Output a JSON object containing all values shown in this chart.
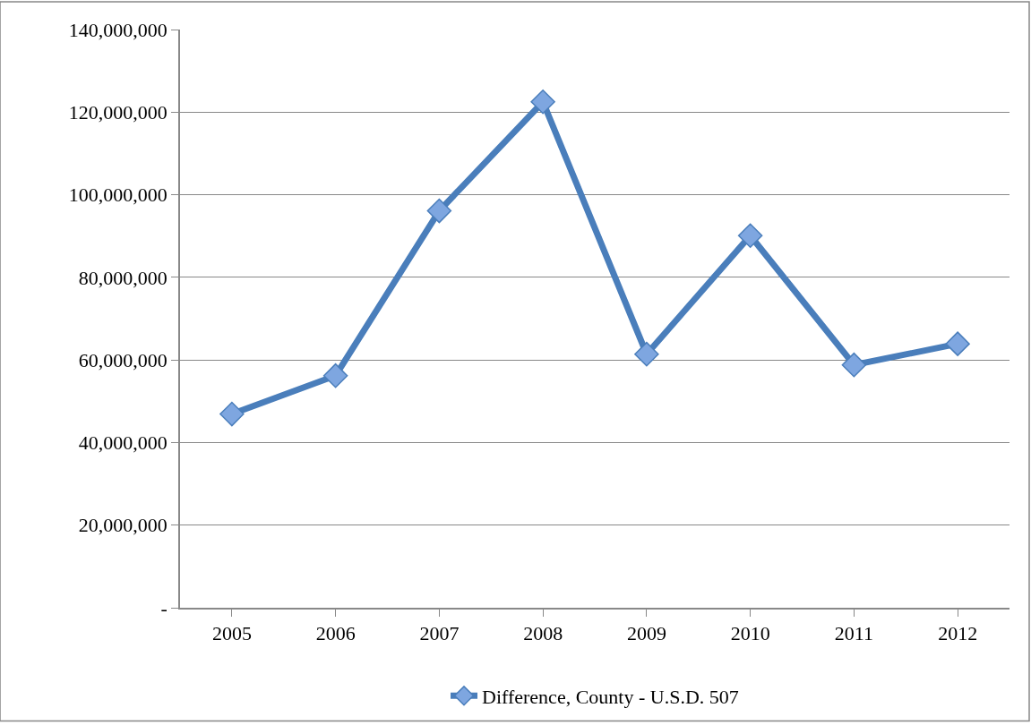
{
  "chart_data": {
    "type": "line",
    "categories": [
      "2005",
      "2006",
      "2007",
      "2008",
      "2009",
      "2010",
      "2011",
      "2012"
    ],
    "series": [
      {
        "name": "Difference, County - U.S.D. 507",
        "color": "#4a7ebb",
        "values": [
          46900000,
          56200000,
          96100000,
          122500000,
          61400000,
          90100000,
          58800000,
          63900000
        ]
      }
    ],
    "ylim": [
      0,
      140000000
    ],
    "yticks": [
      {
        "value": 0,
        "label": "-"
      },
      {
        "value": 20000000,
        "label": "20,000,000"
      },
      {
        "value": 40000000,
        "label": "40,000,000"
      },
      {
        "value": 60000000,
        "label": "60,000,000"
      },
      {
        "value": 80000000,
        "label": "80,000,000"
      },
      {
        "value": 100000000,
        "label": "100,000,000"
      },
      {
        "value": 120000000,
        "label": "120,000,000"
      },
      {
        "value": 140000000,
        "label": "140,000,000"
      }
    ],
    "grid": "y",
    "legend": "bottom",
    "marker": "diamond",
    "line_style": "solid"
  }
}
